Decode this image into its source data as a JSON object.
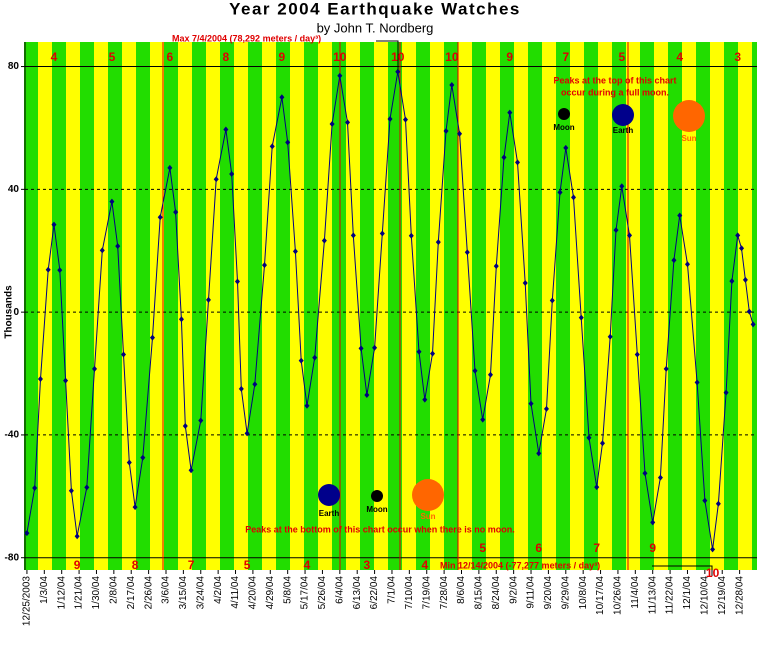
{
  "title": "Year 2004 Earthquake Watches",
  "subtitle": "by John T. Nordberg",
  "chart_data": {
    "type": "line",
    "y_label": "Thousands",
    "color": "#000080",
    "ylim": [
      -84,
      88
    ],
    "yticks": [
      -80,
      -40,
      0,
      40,
      80
    ],
    "xlim": [
      "12/24/03",
      "1/6/05"
    ],
    "xticks": [
      "12/25/2003",
      "1/3/04",
      "1/12/04",
      "1/21/04",
      "1/30/04",
      "2/8/04",
      "2/17/04",
      "2/26/04",
      "3/6/04",
      "3/15/04",
      "3/24/04",
      "4/2/04",
      "4/11/04",
      "4/20/04",
      "4/29/04",
      "5/8/04",
      "5/17/04",
      "5/26/04",
      "6/4/04",
      "6/13/04",
      "6/22/04",
      "7/1/04",
      "7/10/04",
      "7/19/04",
      "7/28/04",
      "8/6/04",
      "8/15/04",
      "8/24/04",
      "9/2/04",
      "9/11/04",
      "9/20/04",
      "9/29/04",
      "10/8/04",
      "10/17/04",
      "10/26/04",
      "11/4/04",
      "11/13/04",
      "11/22/04",
      "12/1/04",
      "12/10/04",
      "12/19/04",
      "12/28/04"
    ],
    "x": [
      "12/25/03",
      "12/29/03",
      "1/1/04",
      "1/5/04",
      "1/8/04",
      "1/11/04",
      "1/14/04",
      "1/17/04",
      "1/20/04",
      "1/25/04",
      "1/29/04",
      "2/2/04",
      "2/7/04",
      "2/10/04",
      "2/13/04",
      "2/16/04",
      "2/19/04",
      "2/23/04",
      "2/28/04",
      "3/3/04",
      "3/8/04",
      "3/11/04",
      "3/14/04",
      "3/16/04",
      "3/19/04",
      "3/24/04",
      "3/28/04",
      "4/1/04",
      "4/6/04",
      "4/9/04",
      "4/12/04",
      "4/14/04",
      "4/17/04",
      "4/21/04",
      "4/26/04",
      "4/30/04",
      "5/5/04",
      "5/8/04",
      "5/12/04",
      "5/15/04",
      "5/18/04",
      "5/22/04",
      "5/27/04",
      "5/31/04",
      "6/4/04",
      "6/8/04",
      "6/11/04",
      "6/15/04",
      "6/18/04",
      "6/22/04",
      "6/26/04",
      "6/30/04",
      "7/4/04",
      "7/8/04",
      "7/11/04",
      "7/15/04",
      "7/18/04",
      "7/22/04",
      "7/25/04",
      "7/29/04",
      "8/1/04",
      "8/5/04",
      "8/9/04",
      "8/13/04",
      "8/17/04",
      "8/21/04",
      "8/24/04",
      "8/28/04",
      "8/31/04",
      "9/4/04",
      "9/8/04",
      "9/11/04",
      "9/15/04",
      "9/19/04",
      "9/22/04",
      "9/26/04",
      "9/29/04",
      "10/3/04",
      "10/7/04",
      "10/11/04",
      "10/15/04",
      "10/18/04",
      "10/22/04",
      "10/25/04",
      "10/28/04",
      "11/1/04",
      "11/5/04",
      "11/9/04",
      "11/13/04",
      "11/17/04",
      "11/20/04",
      "11/24/04",
      "11/27/04",
      "12/1/04",
      "12/6/04",
      "12/10/04",
      "12/14/04",
      "12/17/04",
      "12/21/04",
      "12/24/04",
      "12/27/04",
      "12/29/04",
      "12/31/04",
      "1/2/05",
      "1/4/05"
    ],
    "values": [
      -72,
      -57.3,
      -21.8,
      13.8,
      28.5,
      13.7,
      -22.3,
      -58.2,
      -73,
      -57.1,
      -18.5,
      20.1,
      36,
      21.5,
      -13.8,
      -49,
      -63.5,
      -47.4,
      -8.3,
      30.9,
      47,
      32.6,
      -2.3,
      -37.1,
      -51.5,
      -35.3,
      4,
      43.3,
      59.5,
      45,
      10,
      -25,
      -39.5,
      -23.5,
      15.3,
      54,
      70,
      55.3,
      19.8,
      -15.8,
      -30.5,
      -14.8,
      23.3,
      61.3,
      77,
      61.8,
      25,
      -11.8,
      -27,
      -11.6,
      25.6,
      62.9,
      78.292,
      62.7,
      24.9,
      -12.9,
      -28.5,
      -13.5,
      22.8,
      59,
      74,
      58.1,
      19.5,
      -19.1,
      -35,
      -20.4,
      15,
      50.4,
      65,
      48.8,
      9.5,
      -29.8,
      -46,
      -31.5,
      3.8,
      39,
      53.5,
      37.4,
      -1.8,
      -40.9,
      -57,
      -42.7,
      -8,
      26.7,
      41,
      25,
      -13.8,
      -52.5,
      -68.5,
      -53.9,
      -18.5,
      16.9,
      31.5,
      15.6,
      -22.9,
      -61.4,
      -77.277,
      -62.4,
      -26.2,
      10.1,
      25,
      20.8,
      10.5,
      0.2,
      -4
    ],
    "full_moon_ratings": [
      4,
      5,
      6,
      8,
      9,
      10,
      10,
      10,
      9,
      7,
      5,
      4,
      3
    ],
    "new_moon_ratings": [
      9,
      8,
      7,
      5,
      4,
      3,
      4,
      5,
      6,
      7,
      9,
      10
    ],
    "max_note": "Max 7/4/2004 (78,292 meters / day³)",
    "min_note": "Min 12/14/2004 (-77,277 meters / day³)",
    "top_note": [
      "Peaks at the top of this chart",
      "occur during a full moon."
    ],
    "bottom_note": "Peaks at the bottom of this chart occur when there is no moon.",
    "top_icons": [
      "Moon",
      "Earth",
      "Sun"
    ],
    "bottom_icons": [
      "Earth",
      "Moon",
      "Sun"
    ]
  }
}
